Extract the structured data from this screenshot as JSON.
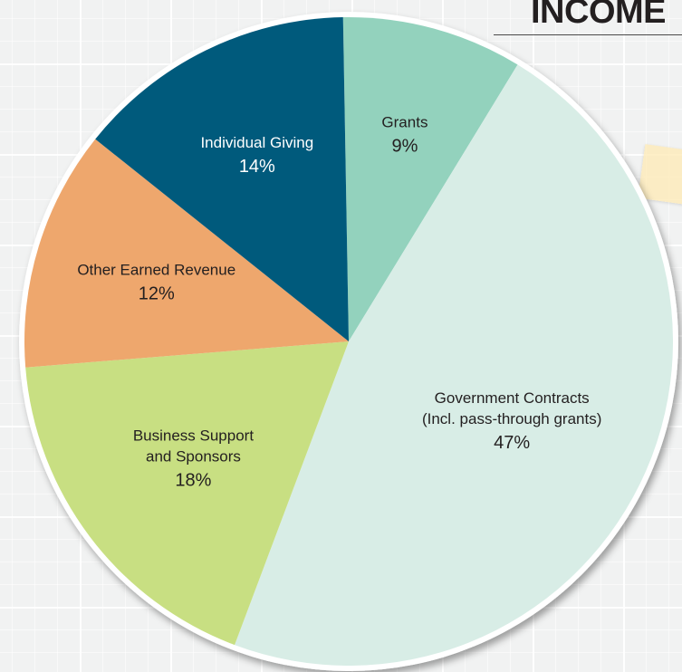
{
  "title": "INCOME",
  "chart_data": {
    "type": "pie",
    "slices": [
      {
        "label": "Grants",
        "label_lines": [
          "Grants"
        ],
        "percent_label": "9%",
        "value": 9,
        "color": "#93d2bd"
      },
      {
        "label": "Government Contracts (Incl. pass-through grants)",
        "label_lines": [
          "Government Contracts",
          "(Incl. pass-through grants)"
        ],
        "percent_label": "47%",
        "value": 47,
        "color": "#d8ede6"
      },
      {
        "label": "Business Support and Sponsors",
        "label_lines": [
          "Business Support",
          "and Sponsors"
        ],
        "percent_label": "18%",
        "value": 18,
        "color": "#c8df82"
      },
      {
        "label": "Other Earned Revenue",
        "label_lines": [
          "Other Earned Revenue"
        ],
        "percent_label": "12%",
        "value": 12,
        "color": "#eea76d"
      },
      {
        "label": "Individual Giving",
        "label_lines": [
          "Individual Giving"
        ],
        "percent_label": "14%",
        "value": 14,
        "color": "#005a7c"
      }
    ]
  }
}
